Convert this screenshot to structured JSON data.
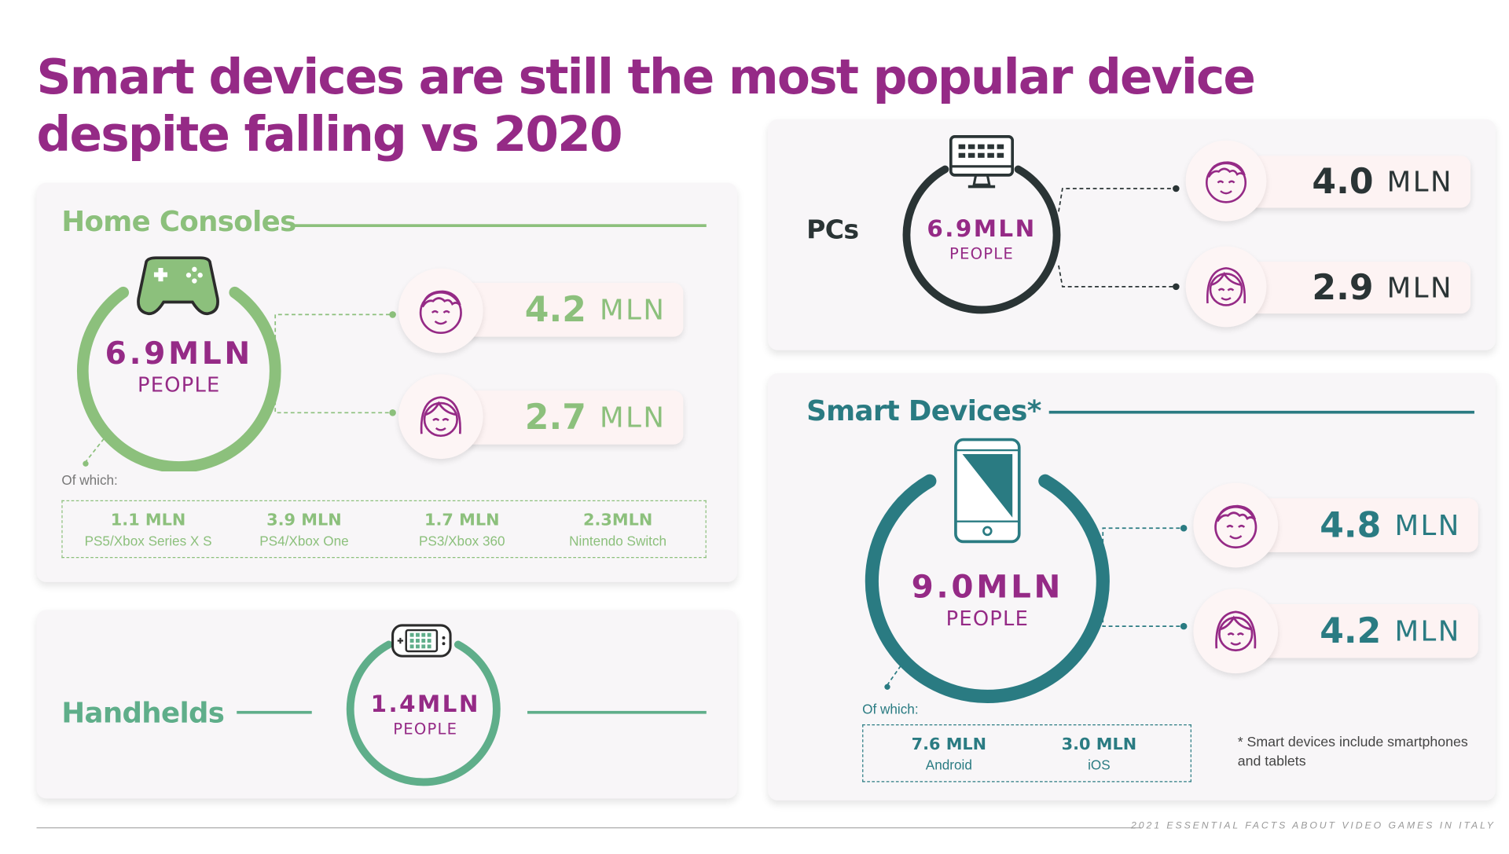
{
  "title": "Smart devices are still the most popular device despite falling vs 2020",
  "colors": {
    "title": "#952a86",
    "consoles": "#8cc07c",
    "handhelds": "#5fae8a",
    "pcs": "#2a3435",
    "smart": "#2a7b82",
    "value_purple": "#952a86"
  },
  "home_consoles": {
    "label": "Home Consoles",
    "icon": "gamepad-icon",
    "total_value": "6.9MLN",
    "total_unit": "PEOPLE",
    "male_value": "4.2",
    "female_value": "2.7",
    "unit": "MLN",
    "of_which": "Of which:",
    "breakdown": [
      {
        "value": "1.1 MLN",
        "label": "PS5/Xbox Series X S"
      },
      {
        "value": "3.9 MLN",
        "label": "PS4/Xbox One"
      },
      {
        "value": "1.7 MLN",
        "label": "PS3/Xbox 360"
      },
      {
        "value": "2.3MLN",
        "label": "Nintendo Switch"
      }
    ]
  },
  "handhelds": {
    "label": "Handhelds",
    "icon": "handheld-console-icon",
    "total_value": "1.4MLN",
    "total_unit": "PEOPLE"
  },
  "pcs": {
    "label": "PCs",
    "icon": "computer-monitor-icon",
    "total_value": "6.9MLN",
    "total_unit": "PEOPLE",
    "male_value": "4.0",
    "female_value": "2.9",
    "unit": "MLN"
  },
  "smart_devices": {
    "label": "Smart Devices*",
    "icon": "smartphone-icon",
    "total_value": "9.0MLN",
    "total_unit": "PEOPLE",
    "male_value": "4.8",
    "female_value": "4.2",
    "unit": "MLN",
    "of_which": "Of which:",
    "breakdown": [
      {
        "value": "7.6 MLN",
        "label": "Android"
      },
      {
        "value": "3.0 MLN",
        "label": "iOS"
      }
    ],
    "footnote": "* Smart devices include smartphones and tablets"
  },
  "footer": "2021 ESSENTIAL FACTS ABOUT VIDEO GAMES IN ITALY"
}
